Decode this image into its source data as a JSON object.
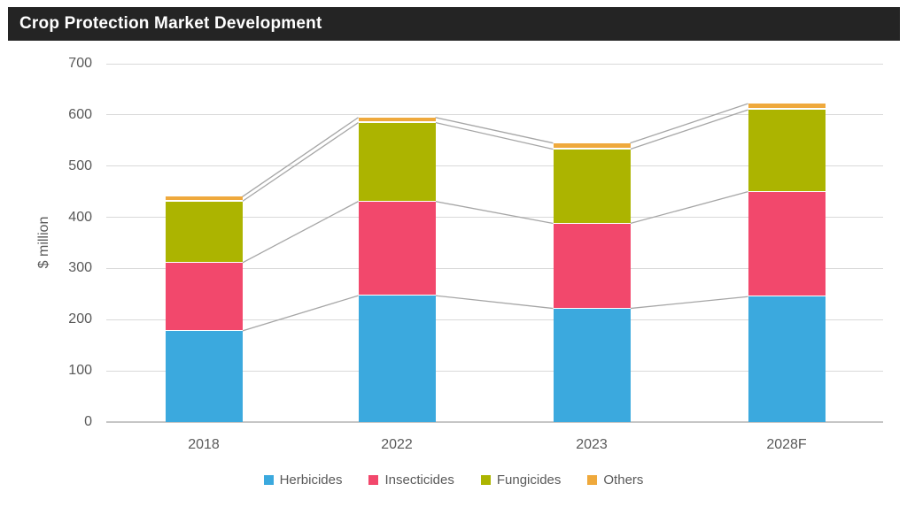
{
  "title": "Crop Protection Market Development",
  "colors": {
    "title_bar_bg": "#242424",
    "title_text": "#FFFFFF",
    "gridline": "#D9D9D9",
    "baseline": "#C6C6C6",
    "connector": "#A6A6A6",
    "axis_text": "#595959",
    "herbicides": "#3BA9DE",
    "insecticides": "#F2486C",
    "fungicides": "#ACB400",
    "others": "#EFA93C"
  },
  "chart_data": {
    "type": "bar",
    "stacked": true,
    "title": "Crop Protection Market Development",
    "categories": [
      "2018",
      "2022",
      "2023",
      "2028F"
    ],
    "series": [
      {
        "name": "Herbicides",
        "color": "#3BA9DE",
        "values": [
          178,
          247,
          222,
          245
        ]
      },
      {
        "name": "Insecticides",
        "color": "#F2486C",
        "values": [
          133,
          184,
          166,
          205
        ]
      },
      {
        "name": "Fungicides",
        "color": "#ACB400",
        "values": [
          120,
          154,
          145,
          160
        ]
      },
      {
        "name": "Others",
        "color": "#EFA93C",
        "values": [
          9,
          10,
          12,
          12
        ]
      }
    ],
    "totals": [
      440,
      595,
      545,
      622
    ],
    "xlabel": "",
    "ylabel": "$ million",
    "ylim": [
      0,
      700
    ],
    "yticks": [
      0,
      100,
      200,
      300,
      400,
      500,
      600,
      700
    ],
    "grid": true,
    "series_lines": true,
    "legend_position": "bottom"
  }
}
